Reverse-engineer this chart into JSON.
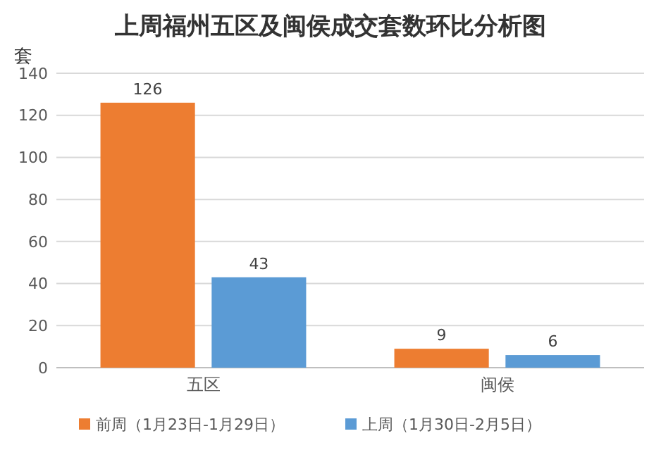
{
  "chart_data": {
    "type": "bar",
    "title": "上周福州五区及闽侯成交套数环比分析图",
    "ylabel": "套",
    "categories": [
      "五区",
      "闽侯"
    ],
    "series": [
      {
        "name": "前周（1月23日-1月29日）",
        "color": "#ed7d31",
        "values": [
          126,
          9
        ]
      },
      {
        "name": "上周（1月30日-2月5日）",
        "color": "#5b9bd5",
        "values": [
          43,
          6
        ]
      }
    ],
    "ylim": [
      0,
      140
    ],
    "yticks": [
      0,
      20,
      40,
      60,
      80,
      100,
      120,
      140
    ],
    "grid": true,
    "legend": "bottom",
    "data_labels": true
  }
}
